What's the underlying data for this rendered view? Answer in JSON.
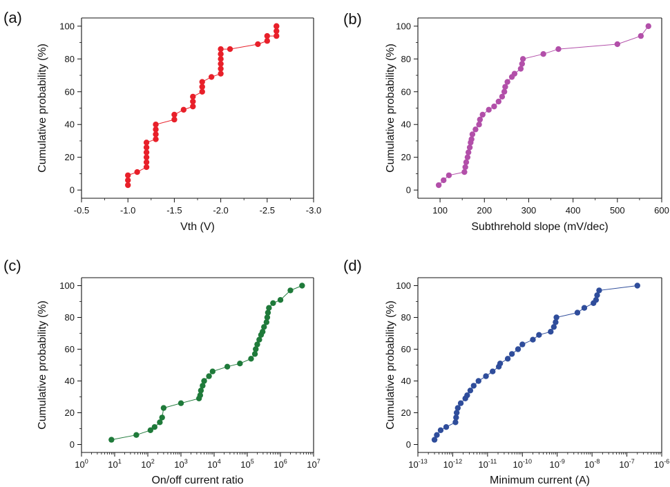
{
  "chart_data": [
    {
      "panel_label": "(a)",
      "type": "line",
      "xlabel": "Vth (V)",
      "ylabel": "Cumulative probability (%)",
      "xlim": [
        -0.5,
        -3.0
      ],
      "ylim": [
        -5,
        105
      ],
      "x_reversed": true,
      "xticks": [
        -0.5,
        -1.0,
        -1.5,
        -2.0,
        -2.5,
        -3.0
      ],
      "xtick_labels": [
        "-0.5",
        "-1.0",
        "-1.5",
        "-2.0",
        "-2.5",
        "-3.0"
      ],
      "yticks": [
        0,
        20,
        40,
        60,
        80,
        100
      ],
      "ytick_labels": [
        "0",
        "20",
        "40",
        "60",
        "80",
        "100"
      ],
      "color": "#e8202a",
      "series": [
        {
          "x": [
            -1.0,
            -1.0,
            -1.0,
            -1.1,
            -1.2,
            -1.2,
            -1.2,
            -1.2,
            -1.2,
            -1.2,
            -1.3,
            -1.3,
            -1.3,
            -1.3,
            -1.5,
            -1.5,
            -1.6,
            -1.7,
            -1.7,
            -1.7,
            -1.8,
            -1.8,
            -1.8,
            -1.9,
            -2.0,
            -2.0,
            -2.0,
            -2.0,
            -2.0,
            -2.0,
            -2.1,
            -2.4,
            -2.5,
            -2.5,
            -2.6,
            -2.6,
            -2.6,
            -2.6
          ],
          "y": [
            3,
            6,
            9,
            11,
            14,
            17,
            20,
            23,
            26,
            29,
            31,
            34,
            37,
            40,
            43,
            46,
            49,
            51,
            54,
            57,
            60,
            63,
            66,
            69,
            71,
            74,
            77,
            80,
            83,
            86,
            86,
            89,
            91,
            94,
            94,
            97,
            100,
            100
          ]
        }
      ]
    },
    {
      "panel_label": "(b)",
      "type": "line",
      "xlabel": "Subthrehold slope (mV/dec)",
      "ylabel": "Cumulative probability (%)",
      "xlim": [
        50,
        600
      ],
      "ylim": [
        -5,
        105
      ],
      "xticks": [
        100,
        200,
        300,
        400,
        500,
        600
      ],
      "xtick_labels": [
        "100",
        "200",
        "300",
        "400",
        "500",
        "600"
      ],
      "yticks": [
        0,
        20,
        40,
        60,
        80,
        100
      ],
      "ytick_labels": [
        "0",
        "20",
        "40",
        "60",
        "80",
        "100"
      ],
      "color": "#b24fa9",
      "series": [
        {
          "x": [
            97,
            108,
            120,
            155,
            157,
            159,
            162,
            164,
            167,
            169,
            171,
            173,
            180,
            188,
            190,
            196,
            210,
            222,
            232,
            240,
            245,
            247,
            252,
            262,
            268,
            282,
            285,
            287,
            333,
            367,
            500,
            553,
            570
          ],
          "y": [
            3,
            6,
            9,
            11,
            14,
            17,
            20,
            23,
            26,
            29,
            31,
            34,
            37,
            40,
            43,
            46,
            49,
            51,
            54,
            57,
            60,
            63,
            66,
            69,
            71,
            74,
            77,
            80,
            83,
            86,
            89,
            94,
            100
          ]
        }
      ]
    },
    {
      "panel_label": "(c)",
      "type": "line",
      "xlabel": "On/off current ratio",
      "ylabel": "Cumulative probability (%)",
      "x_scale": "log",
      "xlim": [
        1,
        10000000
      ],
      "ylim": [
        -5,
        105
      ],
      "xticks": [
        1,
        10,
        100,
        1000,
        10000,
        100000,
        1000000,
        10000000
      ],
      "xtick_labels": [
        [
          "10",
          "0"
        ],
        [
          "10",
          "1"
        ],
        [
          "10",
          "2"
        ],
        [
          "10",
          "3"
        ],
        [
          "10",
          "4"
        ],
        [
          "10",
          "5"
        ],
        [
          "10",
          "6"
        ],
        [
          "10",
          "7"
        ]
      ],
      "yticks": [
        0,
        20,
        40,
        60,
        80,
        100
      ],
      "ytick_labels": [
        "0",
        "20",
        "40",
        "60",
        "80",
        "100"
      ],
      "color": "#1f7a3a",
      "series": [
        {
          "x": [
            8,
            45,
            120,
            160,
            230,
            270,
            300,
            1000,
            3500,
            3800,
            4000,
            4500,
            5000,
            7000,
            9000,
            25000,
            60000,
            130000,
            170000,
            180000,
            200000,
            230000,
            260000,
            290000,
            320000,
            380000,
            400000,
            420000,
            450000,
            600000,
            1000000,
            2000000,
            4500000
          ],
          "y": [
            3,
            6,
            9,
            11,
            14,
            17,
            23,
            26,
            29,
            31,
            34,
            37,
            40,
            43,
            46,
            49,
            51,
            54,
            57,
            60,
            63,
            66,
            69,
            71,
            74,
            77,
            80,
            83,
            86,
            89,
            91,
            97,
            100
          ]
        }
      ]
    },
    {
      "panel_label": "(d)",
      "type": "line",
      "xlabel": "Minimum current (A)",
      "ylabel": "Cumulative probability (%)",
      "x_scale": "log",
      "xlim": [
        1e-13,
        1e-06
      ],
      "ylim": [
        -5,
        105
      ],
      "xticks": [
        1e-13,
        1e-12,
        1e-11,
        1e-10,
        1e-09,
        1e-08,
        1e-07,
        1e-06
      ],
      "xtick_labels": [
        [
          "10",
          "-13"
        ],
        [
          "10",
          "-12"
        ],
        [
          "10",
          "-11"
        ],
        [
          "10",
          "-10"
        ],
        [
          "10",
          "-9"
        ],
        [
          "10",
          "-8"
        ],
        [
          "10",
          "-7"
        ],
        [
          "10",
          "-6"
        ]
      ],
      "yticks": [
        0,
        20,
        40,
        60,
        80,
        100
      ],
      "ytick_labels": [
        "0",
        "20",
        "40",
        "60",
        "80",
        "100"
      ],
      "color": "#2f4d9b",
      "series": [
        {
          "x": [
            3e-13,
            3.5e-13,
            4.5e-13,
            6.5e-13,
            1.2e-12,
            1.25e-12,
            1.3e-12,
            1.4e-12,
            1.7e-12,
            2.3e-12,
            2.6e-12,
            3.2e-12,
            4e-12,
            5.5e-12,
            9e-12,
            1.4e-11,
            2.1e-11,
            2.3e-11,
            3.8e-11,
            5e-11,
            7.5e-11,
            1e-10,
            2e-10,
            3e-10,
            6.5e-10,
            8e-10,
            9e-10,
            9.5e-10,
            3.8e-09,
            6e-09,
            1.1e-08,
            1.3e-08,
            1.4e-08,
            1.6e-08,
            2e-07
          ],
          "y": [
            3,
            6,
            9,
            11,
            14,
            17,
            20,
            23,
            26,
            29,
            31,
            34,
            37,
            40,
            43,
            46,
            49,
            51,
            54,
            57,
            60,
            63,
            66,
            69,
            71,
            74,
            77,
            80,
            83,
            86,
            89,
            91,
            94,
            97,
            100
          ]
        }
      ]
    }
  ]
}
